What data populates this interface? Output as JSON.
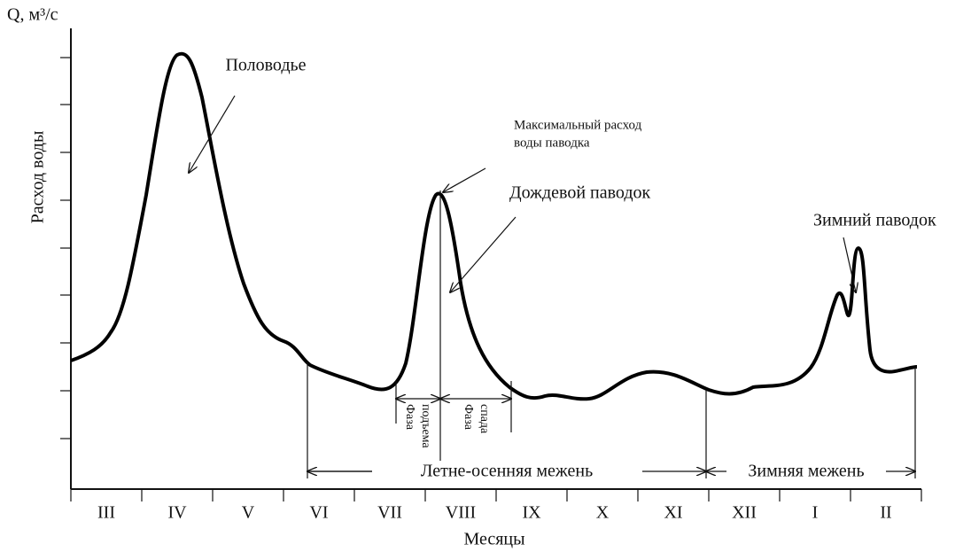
{
  "axis": {
    "y_unit": "Q, м³/с",
    "y_label": "Расход воды",
    "x_label": "Месяцы",
    "months": [
      "III",
      "IV",
      "V",
      "VI",
      "VII",
      "VIII",
      "IX",
      "X",
      "XI",
      "XII",
      "I",
      "II"
    ]
  },
  "annotations": {
    "flood": "Половодье",
    "max_discharge": [
      "Максимальный расход",
      "воды паводка"
    ],
    "rain_flood": "Дождевой паводок",
    "winter_flood": "Зимний паводок",
    "rise_phase": [
      "Фаза",
      "подъема"
    ],
    "fall_phase": [
      "Фаза",
      "спада"
    ],
    "summer_autumn_low": "Летне-осенняя межень",
    "winter_low": "Зимняя межень"
  }
}
